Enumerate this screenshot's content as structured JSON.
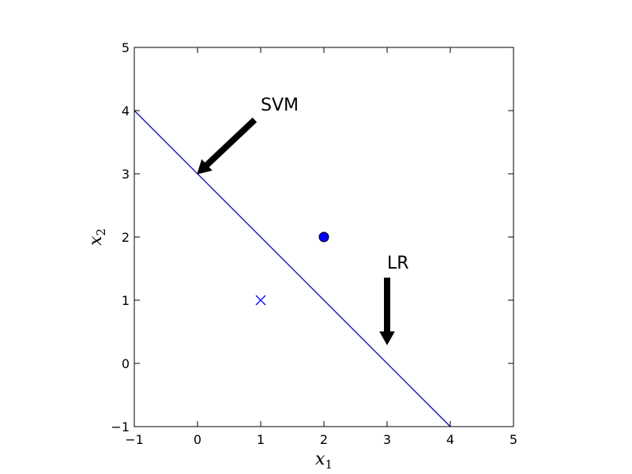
{
  "chart_data": {
    "type": "line",
    "title": "",
    "xlim": [
      -1,
      5
    ],
    "ylim": [
      -1,
      5
    ],
    "xticks": [
      -1,
      0,
      1,
      2,
      3,
      4,
      5
    ],
    "yticks": [
      -1,
      0,
      1,
      2,
      3,
      4,
      5
    ],
    "xtick_labels": [
      "−1",
      "0",
      "1",
      "2",
      "3",
      "4",
      "5"
    ],
    "ytick_labels": [
      "−1",
      "0",
      "1",
      "2",
      "3",
      "4",
      "5"
    ],
    "xlabel": {
      "symbol": "x",
      "subscript": "1"
    },
    "ylabel": {
      "symbol": "x",
      "subscript": "2"
    },
    "grid": false,
    "series": [
      {
        "kind": "line",
        "color": "#0000aa",
        "x": [
          -1,
          4
        ],
        "y": [
          4,
          -1
        ]
      },
      {
        "kind": "scatter",
        "marker": "circle",
        "color": "#0000ff",
        "edge_color": "#000000",
        "points": [
          [
            2,
            2
          ]
        ]
      },
      {
        "kind": "scatter",
        "marker": "x",
        "color": "#0000ff",
        "points": [
          [
            1,
            1
          ]
        ]
      }
    ],
    "annotations": [
      {
        "text": "SVM",
        "text_xy": [
          1,
          4
        ],
        "arrow_from": [
          0.9,
          3.85
        ],
        "arrow_to": [
          0,
          3
        ]
      },
      {
        "text": "LR",
        "text_xy": [
          3,
          1.5
        ],
        "arrow_from": [
          3,
          1.35
        ],
        "arrow_to": [
          3,
          0.3
        ]
      }
    ]
  }
}
